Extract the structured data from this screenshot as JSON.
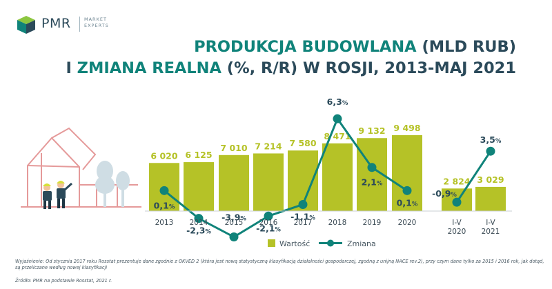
{
  "brand": {
    "name": "PMR",
    "tagline_1": "MARKET",
    "tagline_2": "EXPERTS",
    "colors": {
      "dark": "#2b4a5a",
      "teal": "#10837a",
      "green": "#b5c227"
    }
  },
  "title": {
    "line1_hl": "PRODUKCJA BUDOWLANA",
    "line1_rest": "(MLD RUB)",
    "line2_pre": "I",
    "line2_hl": "ZMIANA REALNA",
    "line2_rest": "(%, R/R) W ROSJI, 2013-MAJ 2021"
  },
  "chart_data": {
    "type": "bar",
    "categories": [
      "2013",
      "2014",
      "2015",
      "2016",
      "2017",
      "2018",
      "2019",
      "2020",
      "I-V 2020",
      "I-V 2021"
    ],
    "series": [
      {
        "name": "Wartość",
        "type": "bar",
        "values": [
          6020,
          6125,
          7010,
          7214,
          7580,
          8471,
          9132,
          9498,
          2824,
          3029
        ],
        "labels": [
          "6 020",
          "6 125",
          "7 010",
          "7 214",
          "7 580",
          "8 471",
          "9 132",
          "9 498",
          "2 824",
          "3 029"
        ]
      },
      {
        "name": "Zmiana",
        "type": "line",
        "values": [
          0.1,
          -2.3,
          -3.9,
          -2.1,
          -1.1,
          6.3,
          2.1,
          0.1,
          -0.9,
          3.5
        ],
        "labels": [
          "0,1",
          "-2,3",
          "-3,9",
          "-2,1",
          "-1,1",
          "6,3",
          "2,1",
          "0,1",
          "-0,9",
          "3,5"
        ],
        "unit": "%"
      }
    ],
    "legend": [
      "Wartość",
      "Zmiana"
    ],
    "legend_position": "bottom",
    "grid": false
  },
  "footer": {
    "note": "Wyjaśnienie: Od stycznia 2017 roku Rosstat prezentuje dane zgodnie z OKVED 2 (która jest nową statystyczną klasyfikacją działalności gospodarczej, zgodną z unijną NACE rev.2), przy czym dane tylko za 2015 i 2016 rok, jak dotąd, są przeliczane według nowej klasyfikacji",
    "source": "Źródło: PMR na podstawie Rosstat, 2021 r."
  }
}
